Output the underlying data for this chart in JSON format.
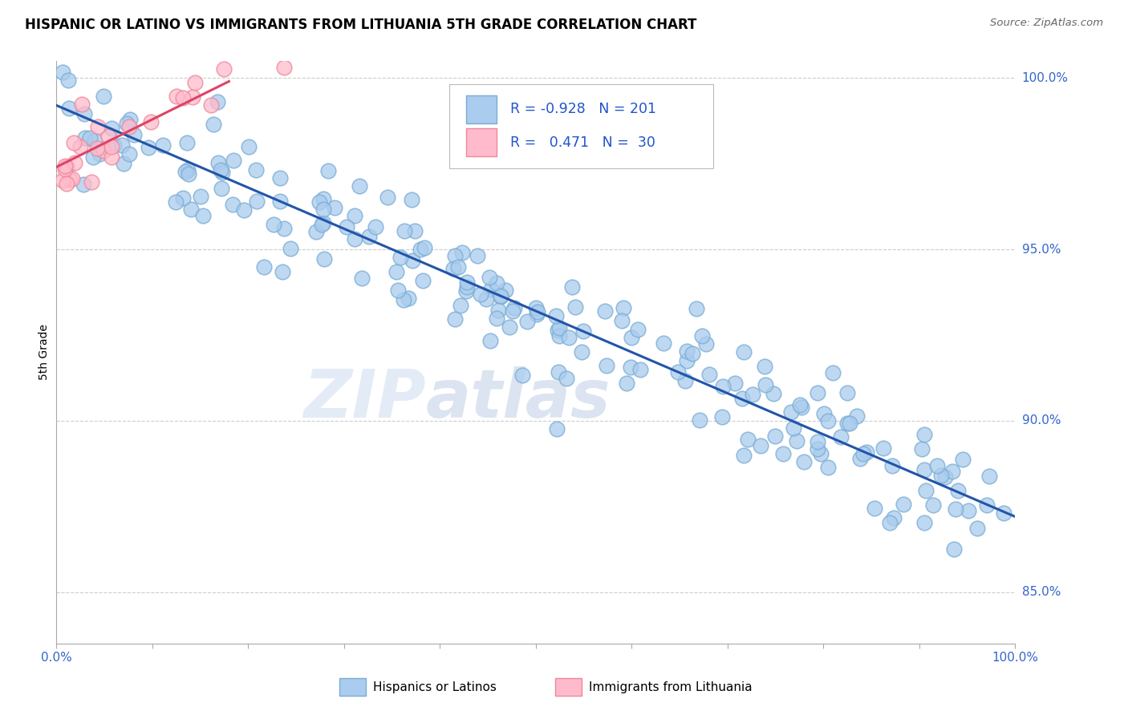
{
  "title": "HISPANIC OR LATINO VS IMMIGRANTS FROM LITHUANIA 5TH GRADE CORRELATION CHART",
  "source": "Source: ZipAtlas.com",
  "ylabel": "5th Grade",
  "watermark_zip": "ZIP",
  "watermark_atlas": "atlas",
  "xlim": [
    0.0,
    1.0
  ],
  "ylim": [
    0.835,
    1.005
  ],
  "ytick_positions": [
    0.85,
    0.9,
    0.95,
    1.0
  ],
  "ytick_labels": [
    "85.0%",
    "90.0%",
    "95.0%",
    "100.0%"
  ],
  "blue_R": -0.928,
  "blue_N": 201,
  "pink_R": 0.471,
  "pink_N": 30,
  "blue_color": "#aaccee",
  "blue_edge": "#7aadd4",
  "pink_color": "#ffbbcc",
  "pink_edge": "#ee8899",
  "blue_line_color": "#2255aa",
  "pink_line_color": "#dd4466",
  "grid_color": "#cccccc",
  "background_color": "#ffffff",
  "blue_line_y_start": 0.992,
  "blue_line_y_end": 0.872,
  "pink_line_y_start": 0.974,
  "pink_line_y_end": 0.999,
  "pink_line_x_end": 0.18
}
